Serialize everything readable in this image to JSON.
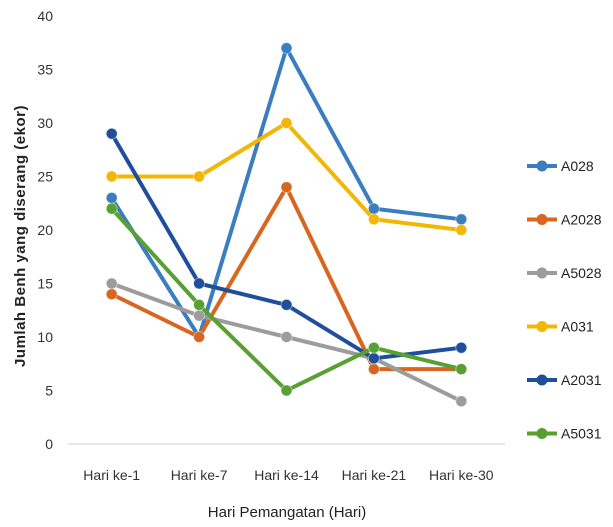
{
  "chart_data": {
    "type": "line",
    "categories": [
      "Hari ke-1",
      "Hari ke-7",
      "Hari ke-14",
      "Hari ke-21",
      "Hari ke-30"
    ],
    "xlabel": "Hari Pemangatan (Hari)",
    "ylabel": "Jumlah Benh yang diserang (ekor)",
    "ylim": [
      0,
      40
    ],
    "yticks": [
      0,
      5,
      10,
      15,
      20,
      25,
      30,
      35,
      40
    ],
    "grid": false,
    "legend_position": "right",
    "series": [
      {
        "name": "A028",
        "color": "#3A7EBF",
        "values": [
          23,
          10,
          37,
          22,
          21
        ]
      },
      {
        "name": "A2028",
        "color": "#D9661F",
        "values": [
          14,
          10,
          24,
          7,
          7
        ]
      },
      {
        "name": "A5028",
        "color": "#9C9C9C",
        "values": [
          15,
          12,
          10,
          8,
          4
        ]
      },
      {
        "name": "A031",
        "color": "#F2B705",
        "values": [
          25,
          25,
          30,
          21,
          20
        ]
      },
      {
        "name": "A2031",
        "color": "#1F4E9C",
        "values": [
          29,
          15,
          13,
          8,
          9
        ]
      },
      {
        "name": "A5031",
        "color": "#58A032",
        "values": [
          22,
          13,
          5,
          9,
          7
        ]
      }
    ]
  }
}
